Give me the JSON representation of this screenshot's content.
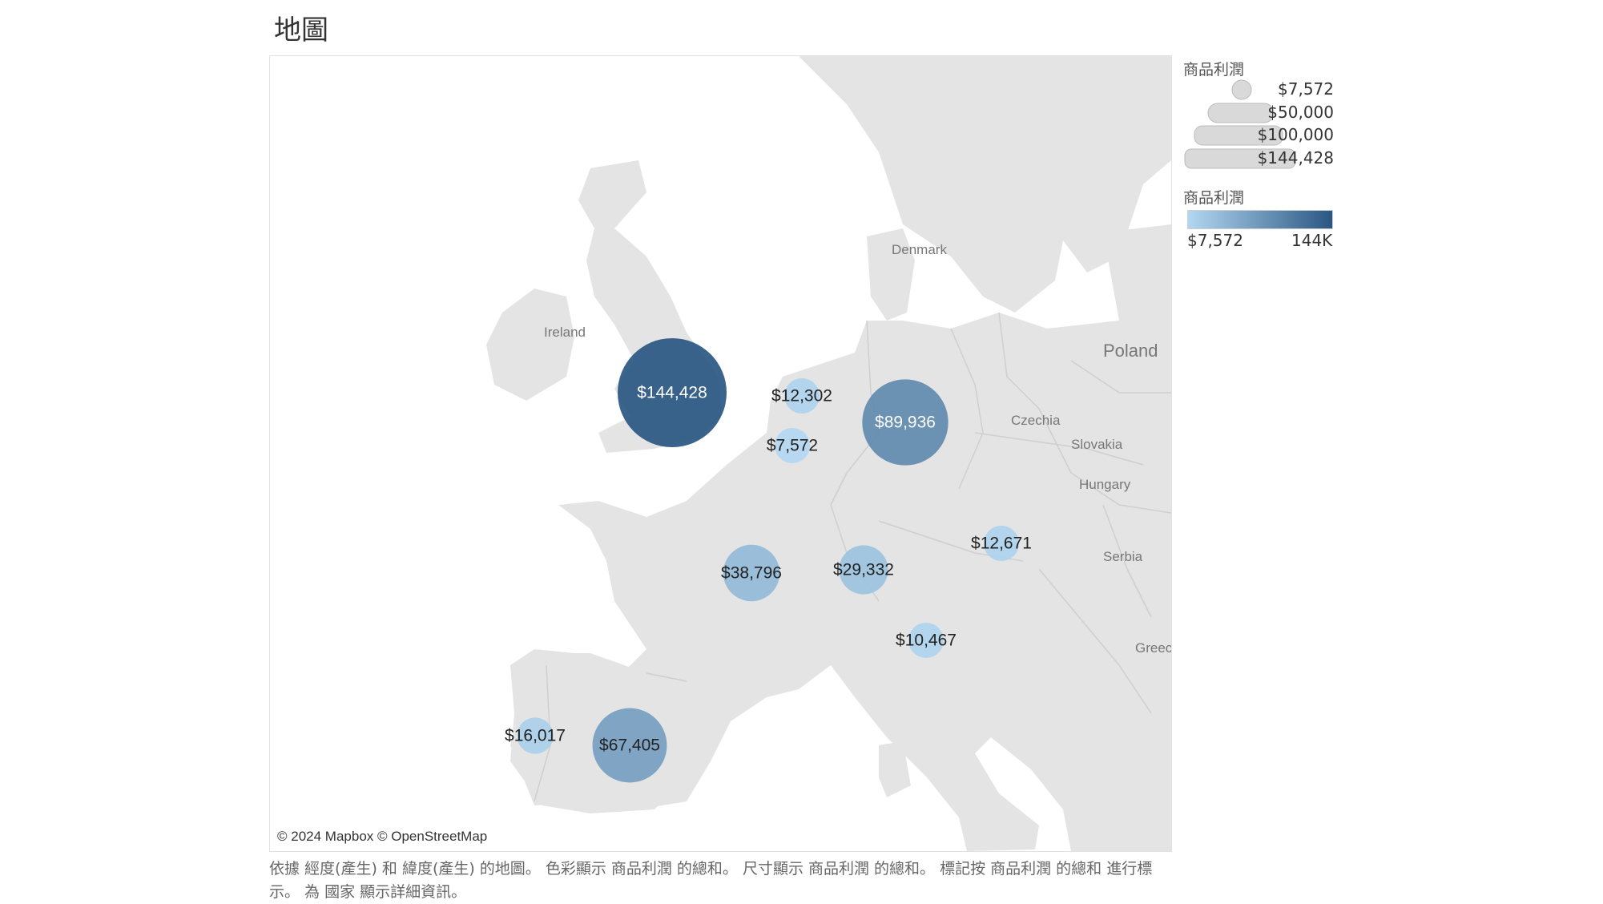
{
  "title": "地圖",
  "map": {
    "attribution": "© 2024 Mapbox © OpenStreetMap",
    "country_labels": [
      {
        "name": "Denmark"
      },
      {
        "name": "Ireland"
      },
      {
        "name": "Poland"
      },
      {
        "name": "Czechia"
      },
      {
        "name": "Slovakia"
      },
      {
        "name": "Hungary"
      },
      {
        "name": "Serbia"
      },
      {
        "name": "Greece"
      }
    ],
    "marks": [
      {
        "label": "$144,428",
        "value": 144428,
        "area": "United Kingdom"
      },
      {
        "label": "$12,302",
        "value": 12302,
        "area": "Netherlands"
      },
      {
        "label": "$7,572",
        "value": 7572,
        "area": "Belgium"
      },
      {
        "label": "$89,936",
        "value": 89936,
        "area": "Germany"
      },
      {
        "label": "$38,796",
        "value": 38796,
        "area": "France"
      },
      {
        "label": "$29,332",
        "value": 29332,
        "area": "Switzerland"
      },
      {
        "label": "$12,671",
        "value": 12671,
        "area": "Austria"
      },
      {
        "label": "$10,467",
        "value": 10467,
        "area": "Italy"
      },
      {
        "label": "$16,017",
        "value": 16017,
        "area": "Portugal"
      },
      {
        "label": "$67,405",
        "value": 67405,
        "area": "Spain"
      }
    ]
  },
  "legend": {
    "size_title": "商品利潤",
    "size_items": [
      {
        "label": "$7,572",
        "value": 7572
      },
      {
        "label": "$50,000",
        "value": 50000
      },
      {
        "label": "$100,000",
        "value": 100000
      },
      {
        "label": "$144,428",
        "value": 144428
      }
    ],
    "color_title": "商品利潤",
    "color_min": "$7,572",
    "color_max": "144K",
    "color_low_hex": "#b3d7f1",
    "color_high_hex": "#2a5783"
  },
  "caption": "依據 經度(產生) 和 緯度(產生) 的地圖。 色彩顯示 商品利潤 的總和。 尺寸顯示 商品利潤 的總和。 標記按 商品利潤 的總和 進行標示。 為 國家 顯示詳細資訊。"
}
